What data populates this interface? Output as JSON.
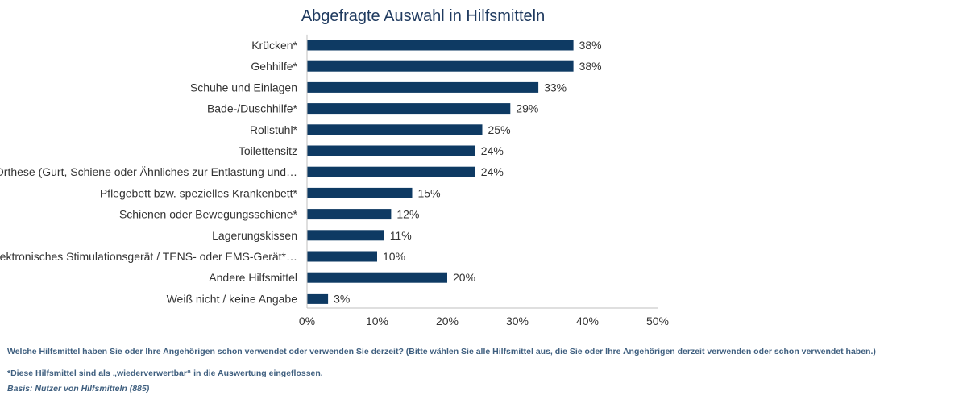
{
  "chart_data": {
    "type": "bar",
    "orientation": "horizontal",
    "title": "Abgefragte Auswahl in Hilfsmitteln",
    "categories": [
      "Krücken*",
      "Gehhilfe*",
      "Schuhe und Einlagen",
      "Bade-/Duschhilfe*",
      "Rollstuhl*",
      "Toilettensitz",
      "Orthese (Gurt, Schiene oder Ähnliches zur Entlastung und…",
      "Pflegebett bzw. spezielles Krankenbett*",
      "Schienen oder Bewegungsschiene*",
      "Lagerungskissen",
      "Elektronisches Stimulationsgerät / TENS- oder EMS-Gerät*…",
      "Andere Hilfsmittel",
      "Weiß nicht / keine Angabe"
    ],
    "values": [
      38,
      38,
      33,
      29,
      25,
      24,
      24,
      15,
      12,
      11,
      10,
      20,
      3
    ],
    "value_labels": [
      "38%",
      "38%",
      "33%",
      "29%",
      "25%",
      "24%",
      "24%",
      "15%",
      "12%",
      "11%",
      "10%",
      "20%",
      "3%"
    ],
    "xlim": [
      0,
      50
    ],
    "xticks": [
      0,
      10,
      20,
      30,
      40,
      50
    ],
    "xtick_labels": [
      "0%",
      "10%",
      "20%",
      "30%",
      "40%",
      "50%"
    ],
    "xlabel": "",
    "ylabel": "",
    "grid": false,
    "bar_color": "#0e3a63"
  },
  "footnotes": {
    "question": "Welche Hilfsmittel haben Sie oder Ihre Angehörigen schon verwendet oder verwenden Sie derzeit? (Bitte wählen Sie alle Hilfsmittel aus, die Sie oder Ihre Angehörigen derzeit verwenden oder schon verwendet haben.)",
    "note": "*Diese Hilfsmittel sind als „wiederverwertbar“ in die Auswertung eingeflossen.",
    "basis": "Basis: Nutzer von Hilfsmitteln (885)"
  }
}
